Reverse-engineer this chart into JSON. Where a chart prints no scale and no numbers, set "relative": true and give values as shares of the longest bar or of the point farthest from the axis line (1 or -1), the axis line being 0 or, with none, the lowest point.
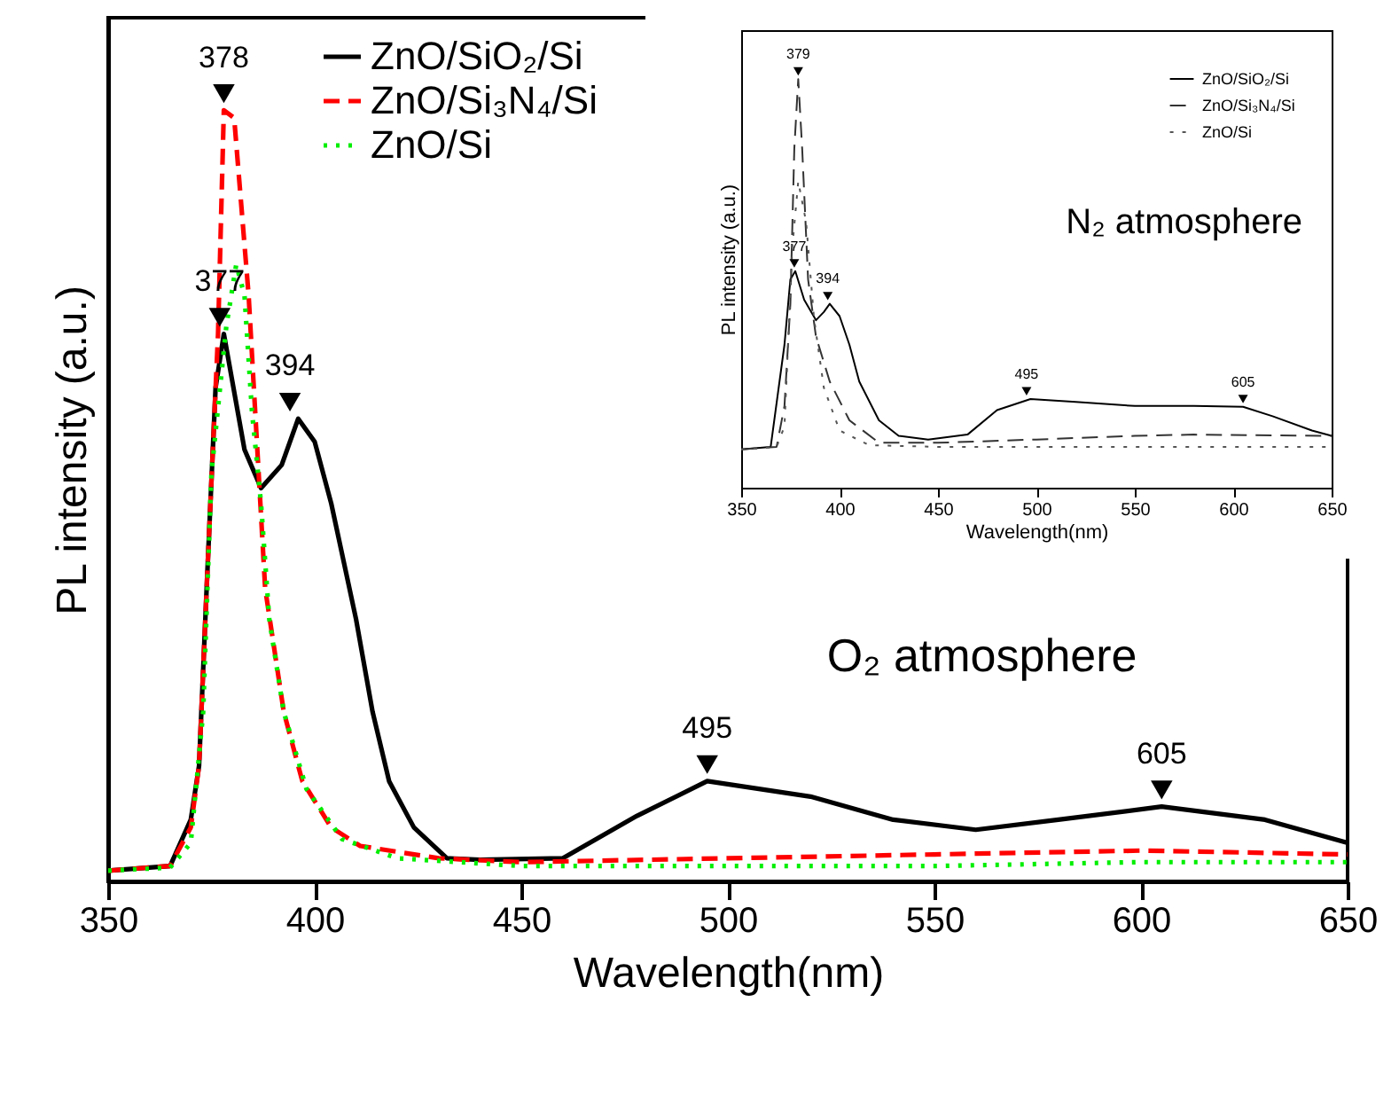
{
  "chart_data": [
    {
      "type": "line",
      "xlabel": "Wavelength(nm)",
      "ylabel": "PL intensity (a.u.)",
      "xlim": [
        350,
        650
      ],
      "xticks": [
        350,
        400,
        450,
        500,
        550,
        600,
        650
      ],
      "relative": true,
      "grid": false,
      "legend": "top",
      "marker": "none",
      "annotations": [
        {
          "text": "378",
          "x": 378,
          "y": 1.0
        },
        {
          "text": "377",
          "x": 377,
          "y": 0.71
        },
        {
          "text": "394",
          "x": 394,
          "y": 0.6
        },
        {
          "text": "495",
          "x": 495,
          "y": 0.13
        },
        {
          "text": "605",
          "x": 605,
          "y": 0.097
        },
        "O₂ atmosphere"
      ],
      "series": [
        {
          "name": "ZnO/SiO₂/Si",
          "color": "#000000",
          "line_style": "solid",
          "x": [
            350,
            365,
            370,
            372,
            374,
            376,
            378,
            380,
            383,
            387,
            392,
            396,
            400,
            404,
            410,
            414,
            418,
            424,
            432,
            440,
            460,
            478,
            495,
            520,
            540,
            560,
            580,
            605,
            630,
            650
          ],
          "values": [
            0.014,
            0.02,
            0.08,
            0.15,
            0.4,
            0.64,
            0.71,
            0.65,
            0.56,
            0.51,
            0.54,
            0.6,
            0.57,
            0.49,
            0.34,
            0.22,
            0.13,
            0.07,
            0.03,
            0.028,
            0.03,
            0.085,
            0.13,
            0.11,
            0.08,
            0.067,
            0.08,
            0.097,
            0.08,
            0.05
          ]
        },
        {
          "name": "ZnO/Si₃N₄/Si",
          "color": "#ff0000",
          "line_style": "dashed",
          "x": [
            350,
            365,
            370,
            372,
            374,
            376.6,
            378,
            380.5,
            384,
            386,
            388,
            392.5,
            397,
            404,
            411,
            430,
            450,
            500,
            550,
            600,
            650
          ],
          "values": [
            0.014,
            0.02,
            0.07,
            0.15,
            0.4,
            0.71,
            1.0,
            0.99,
            0.76,
            0.57,
            0.38,
            0.22,
            0.13,
            0.07,
            0.046,
            0.03,
            0.025,
            0.03,
            0.035,
            0.04,
            0.035
          ]
        },
        {
          "name": "ZnO/Si",
          "color": "#00ee00",
          "line_style": "dotted",
          "x": [
            350,
            365,
            370,
            373,
            375,
            378.6,
            381,
            383,
            384.8,
            387,
            389,
            392.5,
            398,
            406.6,
            420,
            450,
            500,
            550,
            600,
            650
          ],
          "values": [
            0.014,
            0.018,
            0.05,
            0.22,
            0.53,
            0.72,
            0.8,
            0.76,
            0.61,
            0.49,
            0.34,
            0.22,
            0.12,
            0.055,
            0.03,
            0.02,
            0.02,
            0.02,
            0.025,
            0.025
          ]
        }
      ]
    },
    {
      "type": "line",
      "xlabel": "Wavelength(nm)",
      "ylabel": "PL intensity (a.u.)",
      "xlim": [
        350,
        650
      ],
      "xticks": [
        350,
        400,
        450,
        500,
        550,
        600,
        650
      ],
      "relative": true,
      "grid": false,
      "legend": "top right",
      "marker": "none",
      "annotations": [
        {
          "text": "379",
          "x": 379,
          "y": 1.0
        },
        {
          "text": "377",
          "x": 377,
          "y": 0.53
        },
        {
          "text": "394",
          "x": 394,
          "y": 0.45
        },
        {
          "text": "495",
          "x": 495,
          "y": 0.217
        },
        {
          "text": "605",
          "x": 605,
          "y": 0.198
        },
        "N₂ atmosphere"
      ],
      "series": [
        {
          "name": "ZnO/SiO₂/Si",
          "color": "#000000",
          "line_style": "solid",
          "x": [
            350,
            365,
            372,
            375,
            377.5,
            382,
            388,
            392,
            395,
            400,
            405,
            410,
            420,
            430,
            445,
            465,
            480,
            497,
            520,
            550,
            580,
            605,
            620,
            640,
            650
          ],
          "values": [
            0.094,
            0.1,
            0.35,
            0.51,
            0.53,
            0.46,
            0.41,
            0.43,
            0.45,
            0.42,
            0.35,
            0.26,
            0.165,
            0.127,
            0.118,
            0.13,
            0.19,
            0.217,
            0.21,
            0.2,
            0.2,
            0.198,
            0.175,
            0.14,
            0.127
          ]
        },
        {
          "name": "ZnO/Si₃N₄/Si",
          "color": "#333333",
          "line_style": "dashed",
          "x": [
            350,
            368,
            372,
            375,
            377,
            379,
            381,
            384,
            388,
            395,
            405,
            420,
            450,
            500,
            550,
            580,
            650
          ],
          "values": [
            0.094,
            0.1,
            0.2,
            0.45,
            0.83,
            1.0,
            0.83,
            0.51,
            0.37,
            0.26,
            0.165,
            0.11,
            0.11,
            0.118,
            0.127,
            0.13,
            0.127
          ]
        },
        {
          "name": "ZnO/Si",
          "color": "#555555",
          "line_style": "dotted",
          "x": [
            350,
            368,
            372,
            376,
            379,
            383,
            387,
            392,
            400,
            415,
            450,
            500,
            550,
            600,
            650
          ],
          "values": [
            0.094,
            0.1,
            0.15,
            0.59,
            0.75,
            0.65,
            0.415,
            0.245,
            0.14,
            0.104,
            0.1,
            0.1,
            0.1,
            0.1,
            0.1
          ]
        }
      ]
    }
  ]
}
